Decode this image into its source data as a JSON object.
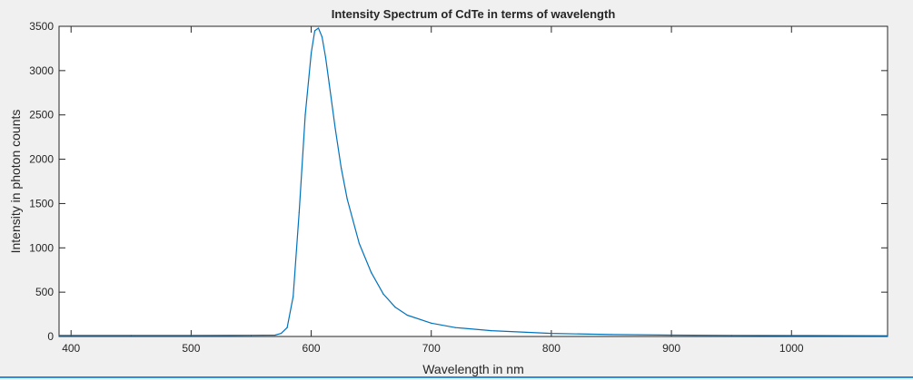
{
  "chart_data": {
    "type": "line",
    "title": "Intensity Spectrum of CdTe in terms of wavelength",
    "xlabel": "Wavelength in nm",
    "ylabel": "Intensity in photon counts",
    "xlim": [
      390,
      1080
    ],
    "ylim": [
      0,
      3500
    ],
    "xticks": [
      400,
      500,
      600,
      700,
      800,
      900,
      1000
    ],
    "yticks": [
      0,
      500,
      1000,
      1500,
      2000,
      2500,
      3000,
      3500
    ],
    "grid": false,
    "legend": "none",
    "series": [
      {
        "color": "#0072bd",
        "x": [
          390,
          450,
          500,
          550,
          570,
          575,
          580,
          585,
          590,
          595,
          600,
          603,
          606,
          609,
          612,
          615,
          620,
          625,
          630,
          640,
          650,
          660,
          670,
          680,
          700,
          720,
          750,
          800,
          850,
          900,
          950,
          1000,
          1080
        ],
        "y": [
          12,
          12,
          12,
          13,
          15,
          35,
          100,
          450,
          1400,
          2500,
          3200,
          3450,
          3480,
          3380,
          3150,
          2850,
          2350,
          1900,
          1550,
          1050,
          720,
          480,
          330,
          240,
          150,
          100,
          65,
          35,
          22,
          15,
          12,
          10,
          8
        ]
      }
    ]
  }
}
